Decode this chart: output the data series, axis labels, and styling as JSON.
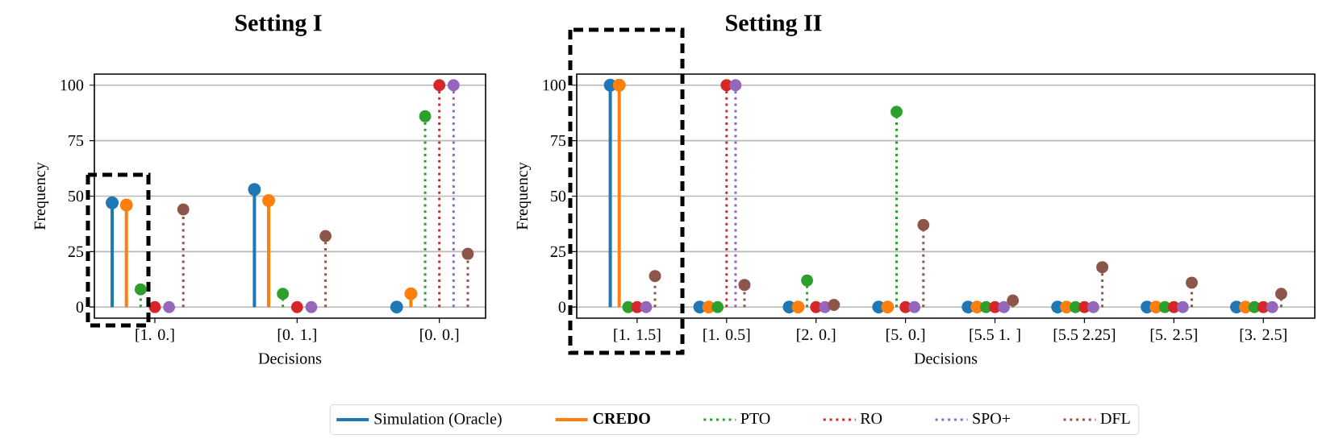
{
  "chart_data": [
    {
      "type": "lollipop",
      "title": "Setting I",
      "xlabel": "Decisions",
      "ylabel": "Frequency",
      "categories": [
        "[1. 0.]",
        "[0. 1.]",
        "[0. 0.]"
      ],
      "ylim": [
        -5,
        105
      ],
      "yticks": [
        0,
        25,
        50,
        75,
        100
      ],
      "grid": "y",
      "marker": "circle",
      "legend": "bottom",
      "series": [
        {
          "name": "Simulation (Oracle)",
          "color": "#1f77b4",
          "line_style": "solid",
          "values": [
            47,
            53,
            0
          ]
        },
        {
          "name": "**CREDO**",
          "color": "#ff7f0e",
          "line_style": "solid",
          "values": [
            46,
            48,
            6
          ]
        },
        {
          "name": "PTO",
          "color": "#2ca02c",
          "line_style": "dotted",
          "values": [
            8,
            6,
            86
          ]
        },
        {
          "name": "RO",
          "color": "#d62728",
          "line_style": "dotted",
          "values": [
            0,
            0,
            100
          ]
        },
        {
          "name": "SPO+",
          "color": "#9467bd",
          "line_style": "dotted",
          "values": [
            0,
            0,
            100
          ]
        },
        {
          "name": "DFL",
          "color": "#8c564b",
          "line_style": "dotted",
          "values": [
            44,
            32,
            24
          ]
        }
      ]
    },
    {
      "type": "lollipop",
      "title": "Setting II",
      "xlabel": "Decisions",
      "ylabel": "Frequency",
      "categories": [
        "[1. 1.5]",
        "[1. 0.5]",
        "[2. 0.]",
        "[5. 0.]",
        "[5.5 1. ]",
        "[5.5 2.25]",
        "[5. 2.5]",
        "[3. 2.5]"
      ],
      "ylim": [
        -5,
        105
      ],
      "yticks": [
        0,
        25,
        50,
        75,
        100
      ],
      "grid": "y",
      "marker": "circle",
      "series": [
        {
          "color": "#1f77b4",
          "line_style": "solid",
          "values": [
            100,
            0,
            0,
            0,
            0,
            0,
            0,
            0
          ]
        },
        {
          "color": "#ff7f0e",
          "line_style": "solid",
          "values": [
            100,
            0,
            0,
            0,
            0,
            0,
            0,
            0
          ]
        },
        {
          "color": "#2ca02c",
          "line_style": "dotted",
          "values": [
            0,
            0,
            12,
            88,
            0,
            0,
            0,
            0
          ]
        },
        {
          "color": "#d62728",
          "line_style": "dotted",
          "values": [
            0,
            100,
            0,
            0,
            0,
            0,
            0,
            0
          ]
        },
        {
          "color": "#9467bd",
          "line_style": "dotted",
          "values": [
            0,
            100,
            0,
            0,
            0,
            0,
            0,
            0
          ]
        },
        {
          "color": "#8c564b",
          "line_style": "dotted",
          "values": [
            14,
            10,
            1,
            37,
            3,
            18,
            11,
            6
          ]
        }
      ]
    }
  ]
}
